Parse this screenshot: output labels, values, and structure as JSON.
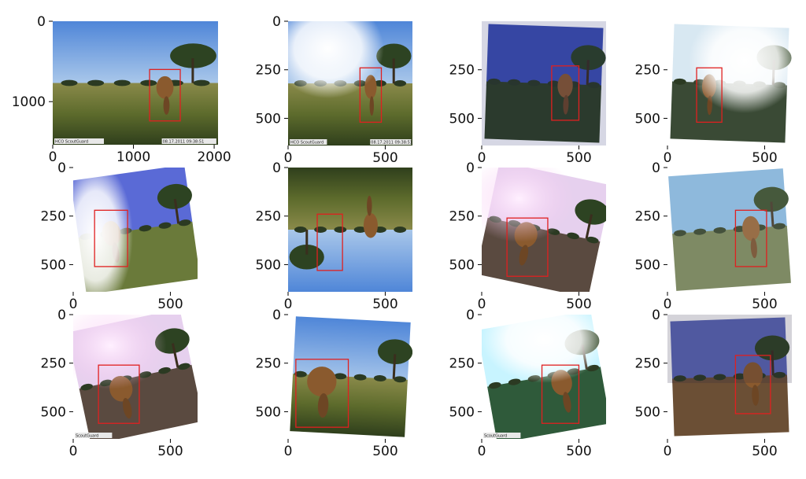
{
  "chart_data": [
    {
      "type": "image",
      "xlim": [
        0,
        2048
      ],
      "ylim": [
        1536,
        0
      ],
      "xticks": [
        0,
        1000,
        2000
      ],
      "xtick_labels": [
        "0",
        "1000",
        "2000"
      ],
      "yticks": [
        0,
        1000
      ],
      "ytick_labels": [
        "0",
        "1000"
      ],
      "overlay_text": [
        "HCO ScoutGuard",
        "08.17.2011 09:38:51"
      ],
      "box": {
        "x0": 1200,
        "y0": 600,
        "x1": 1580,
        "y1": 1240
      },
      "box_color": "#e02020",
      "scene": {
        "tone": "clear",
        "rotation": 0
      }
    },
    {
      "type": "image",
      "xlim": [
        0,
        640
      ],
      "ylim": [
        640,
        0
      ],
      "xticks": [
        0,
        500
      ],
      "xtick_labels": [
        "0",
        "500"
      ],
      "yticks": [
        0,
        250,
        500
      ],
      "ytick_labels": [
        "0",
        "250",
        "500"
      ],
      "overlay_text": [
        "HCO ScoutGuard",
        "08.17.2011 09:38:51"
      ],
      "box": {
        "x0": 370,
        "y0": 240,
        "x1": 480,
        "y1": 520
      },
      "box_color": "#e02020",
      "scene": {
        "tone": "flare",
        "rotation": 0
      }
    },
    {
      "type": "image",
      "xlim": [
        0,
        640
      ],
      "ylim": [
        640,
        0
      ],
      "xticks": [
        0,
        500
      ],
      "xtick_labels": [
        "0",
        "500"
      ],
      "yticks": [
        250,
        500
      ],
      "ytick_labels": [
        "250",
        "500"
      ],
      "overlay_text": [],
      "box": {
        "x0": 360,
        "y0": 230,
        "x1": 500,
        "y1": 510
      },
      "box_color": "#e02020",
      "scene": {
        "tone": "dark-blue",
        "rotation": 2
      }
    },
    {
      "type": "image",
      "xlim": [
        0,
        640
      ],
      "ylim": [
        640,
        0
      ],
      "xticks": [
        0,
        500
      ],
      "xtick_labels": [
        "0",
        "500"
      ],
      "yticks": [
        250,
        500
      ],
      "ytick_labels": [
        "250",
        "500"
      ],
      "overlay_text": [],
      "box": {
        "x0": 150,
        "y0": 240,
        "x1": 280,
        "y1": 520
      },
      "box_color": "#e02020",
      "scene": {
        "tone": "glare",
        "rotation": 2
      }
    },
    {
      "type": "image",
      "xlim": [
        0,
        640
      ],
      "ylim": [
        640,
        0
      ],
      "xticks": [
        0,
        500
      ],
      "xtick_labels": [
        "0",
        "500"
      ],
      "yticks": [
        0,
        250,
        500
      ],
      "ytick_labels": [
        "0",
        "250",
        "500"
      ],
      "overlay_text": [],
      "box": {
        "x0": 110,
        "y0": 220,
        "x1": 280,
        "y1": 510
      },
      "box_color": "#e02020",
      "scene": {
        "tone": "washed-rotated",
        "rotation": -8
      }
    },
    {
      "type": "image",
      "xlim": [
        0,
        640
      ],
      "ylim": [
        640,
        0
      ],
      "xticks": [
        0,
        500
      ],
      "xtick_labels": [
        "0",
        "500"
      ],
      "yticks": [
        0,
        250,
        500
      ],
      "ytick_labels": [
        "0",
        "250",
        "500"
      ],
      "overlay_text": [],
      "box": {
        "x0": 150,
        "y0": 240,
        "x1": 280,
        "y1": 530
      },
      "box_color": "#e02020",
      "scene": {
        "tone": "clear",
        "rotation": 180
      }
    },
    {
      "type": "image",
      "xlim": [
        0,
        640
      ],
      "ylim": [
        640,
        0
      ],
      "xticks": [
        0,
        500
      ],
      "xtick_labels": [
        "0",
        "500"
      ],
      "yticks": [
        0,
        250,
        500
      ],
      "ytick_labels": [
        "0",
        "250",
        "500"
      ],
      "overlay_text": [],
      "box": {
        "x0": 130,
        "y0": 260,
        "x1": 340,
        "y1": 560
      },
      "box_color": "#e02020",
      "scene": {
        "tone": "pink-rotated",
        "rotation": 12
      }
    },
    {
      "type": "image",
      "xlim": [
        0,
        640
      ],
      "ylim": [
        640,
        0
      ],
      "xticks": [
        0,
        500
      ],
      "xtick_labels": [
        "0",
        "500"
      ],
      "yticks": [
        0,
        250,
        500
      ],
      "ytick_labels": [
        "0",
        "250",
        "500"
      ],
      "overlay_text": [],
      "box": {
        "x0": 350,
        "y0": 220,
        "x1": 510,
        "y1": 510
      },
      "box_color": "#e02020",
      "scene": {
        "tone": "blurred",
        "rotation": -4
      }
    },
    {
      "type": "image",
      "xlim": [
        0,
        640
      ],
      "ylim": [
        640,
        0
      ],
      "xticks": [
        0,
        500
      ],
      "xtick_labels": [
        "0",
        "500"
      ],
      "yticks": [
        0,
        250,
        500
      ],
      "ytick_labels": [
        "0",
        "250",
        "500"
      ],
      "overlay_text": [
        "ScoutGuard"
      ],
      "box": {
        "x0": 130,
        "y0": 260,
        "x1": 340,
        "y1": 560
      },
      "box_color": "#e02020",
      "scene": {
        "tone": "pink-rotated",
        "rotation": -12
      }
    },
    {
      "type": "image",
      "xlim": [
        0,
        640
      ],
      "ylim": [
        640,
        0
      ],
      "xticks": [
        0,
        500
      ],
      "xtick_labels": [
        "0",
        "500"
      ],
      "yticks": [
        0,
        250,
        500
      ],
      "ytick_labels": [
        "0",
        "250",
        "500"
      ],
      "overlay_text": [],
      "box": {
        "x0": 40,
        "y0": 230,
        "x1": 310,
        "y1": 580
      },
      "box_color": "#e02020",
      "scene": {
        "tone": "clear",
        "rotation": 3
      }
    },
    {
      "type": "image",
      "xlim": [
        0,
        640
      ],
      "ylim": [
        640,
        0
      ],
      "xticks": [
        0,
        500
      ],
      "xtick_labels": [
        "0",
        "500"
      ],
      "yticks": [
        0,
        250,
        500
      ],
      "ytick_labels": [
        "0",
        "250",
        "500"
      ],
      "overlay_text": [
        "ScoutGuard"
      ],
      "box": {
        "x0": 310,
        "y0": 260,
        "x1": 500,
        "y1": 560
      },
      "box_color": "#e02020",
      "scene": {
        "tone": "cyan-rotated",
        "rotation": -10
      }
    },
    {
      "type": "image",
      "xlim": [
        0,
        640
      ],
      "ylim": [
        640,
        0
      ],
      "xticks": [
        0,
        500
      ],
      "xtick_labels": [
        "0",
        "500"
      ],
      "yticks": [
        0,
        250,
        500
      ],
      "ytick_labels": [
        "0",
        "250",
        "500"
      ],
      "overlay_text": [],
      "box": {
        "x0": 350,
        "y0": 210,
        "x1": 530,
        "y1": 510
      },
      "box_color": "#e02020",
      "scene": {
        "tone": "sepia",
        "rotation": -2
      }
    }
  ]
}
